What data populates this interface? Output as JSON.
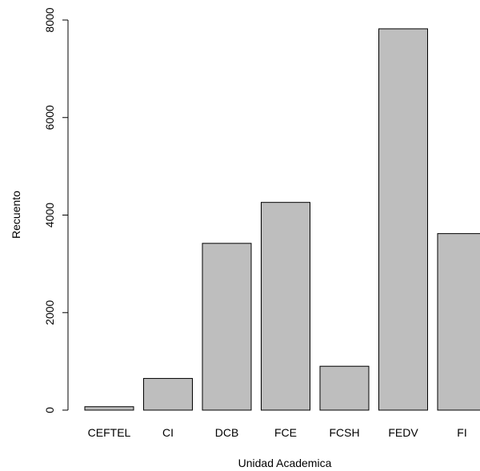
{
  "chart_data": {
    "type": "bar",
    "title": "",
    "xlabel": "Unidad Academica",
    "ylabel": "Recuento",
    "categories": [
      "CEFTEL",
      "CI",
      "DCB",
      "FCE",
      "FCSH",
      "FEDV",
      "FI"
    ],
    "values": [
      70,
      650,
      3420,
      4260,
      900,
      7820,
      3620
    ],
    "yticks": [
      0,
      2000,
      4000,
      6000,
      8000
    ],
    "ylim": [
      0,
      8000
    ],
    "grid": false,
    "legend": "none",
    "colors": {
      "bar_fill": "#bebebe",
      "bar_stroke": "#000000",
      "axis": "#000000",
      "background": "#ffffff"
    }
  }
}
